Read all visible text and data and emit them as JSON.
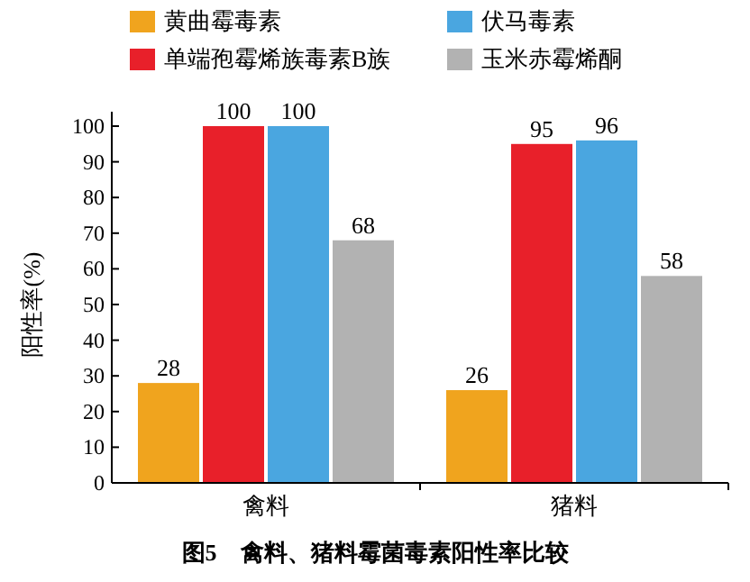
{
  "chart_data": {
    "type": "bar",
    "ylabel": "阳性率(%)",
    "categories": [
      "禽料",
      "猪料"
    ],
    "series": [
      {
        "name": "黄曲霉毒素",
        "color": "#f0a41e",
        "values": [
          28,
          26
        ]
      },
      {
        "name": "单端孢霉烯族毒素B族",
        "color": "#e8202a",
        "values": [
          100,
          95
        ]
      },
      {
        "name": "伏马毒素",
        "color": "#4aa6e0",
        "values": [
          100,
          96
        ]
      },
      {
        "name": "玉米赤霉烯酮",
        "color": "#b2b2b2",
        "values": [
          68,
          58
        ]
      }
    ],
    "ylim": [
      0,
      100
    ],
    "yticks": [
      0,
      10,
      20,
      30,
      40,
      50,
      60,
      70,
      80,
      90,
      100
    ],
    "data_labels": true,
    "legend": "top",
    "grid": false,
    "annotations": [
      "图5　禽料、猪料霉菌毒素阳性率比较"
    ]
  }
}
